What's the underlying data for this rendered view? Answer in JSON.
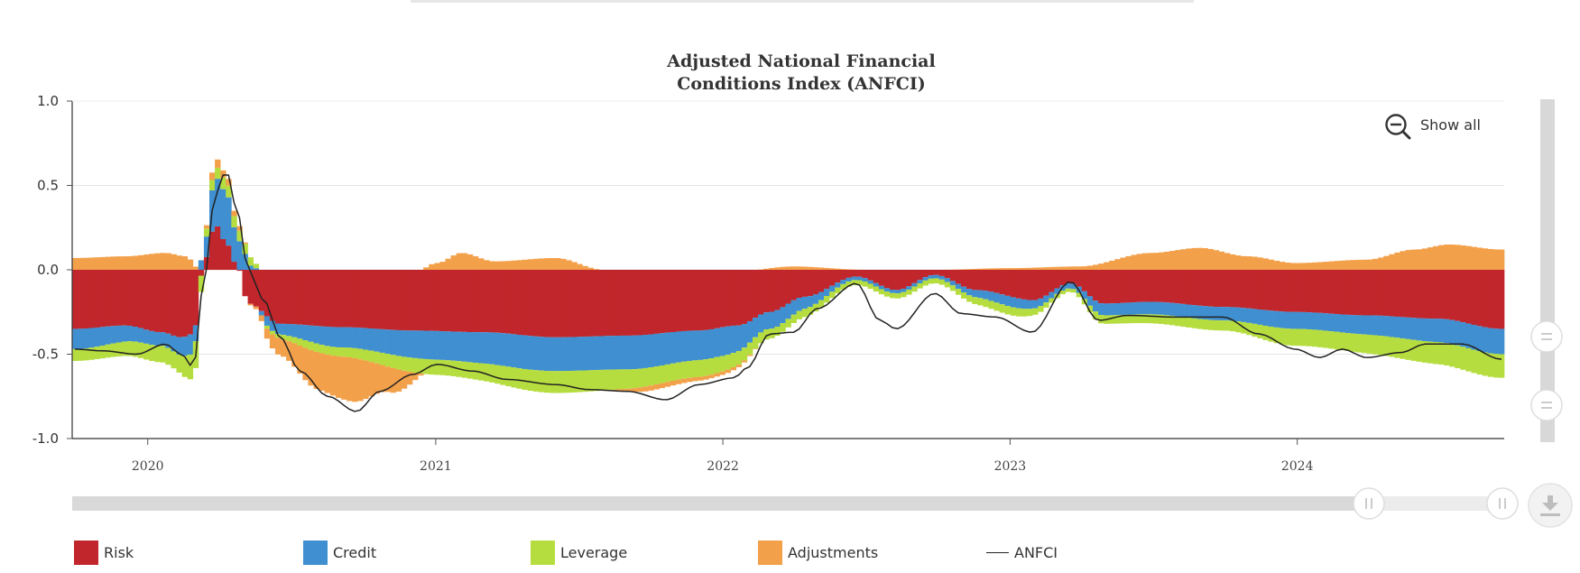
{
  "chart_data": {
    "type": "bar",
    "stacked": true,
    "title_lines": [
      "Adjusted National Financial",
      "Conditions Index (ANFCI)"
    ],
    "xlabel": "",
    "ylabel": "",
    "ylim": [
      -1.0,
      1.0
    ],
    "y_ticks": [
      "1.0",
      "0.5",
      "0.0",
      "-0.5",
      "-1.0"
    ],
    "x_ticks": [
      {
        "label": "2020",
        "year": 2020
      },
      {
        "label": "2021",
        "year": 2021
      },
      {
        "label": "2022",
        "year": 2022
      },
      {
        "label": "2023",
        "year": 2023
      },
      {
        "label": "2024",
        "year": 2024
      }
    ],
    "x_range": [
      "2019-09-27",
      "2024-09-20"
    ],
    "frequency": "weekly",
    "grid": true,
    "legend_position": "bottom",
    "series": [
      {
        "name": "Risk",
        "color": "#c0262b",
        "knots": [
          [
            "2019-09-27",
            -0.35
          ],
          [
            "2019-12-01",
            -0.33
          ],
          [
            "2020-01-15",
            -0.37
          ],
          [
            "2020-02-10",
            -0.4
          ],
          [
            "2020-02-25",
            -0.38
          ],
          [
            "2020-03-10",
            0.05
          ],
          [
            "2020-03-24",
            0.27
          ],
          [
            "2020-04-07",
            0.16
          ],
          [
            "2020-04-21",
            0.02
          ],
          [
            "2020-05-05",
            -0.2
          ],
          [
            "2020-06-15",
            -0.32
          ],
          [
            "2020-09-01",
            -0.34
          ],
          [
            "2020-12-01",
            -0.36
          ],
          [
            "2021-03-01",
            -0.37
          ],
          [
            "2021-06-01",
            -0.4
          ],
          [
            "2021-09-01",
            -0.39
          ],
          [
            "2021-12-01",
            -0.36
          ],
          [
            "2022-01-20",
            -0.33
          ],
          [
            "2022-03-01",
            -0.25
          ],
          [
            "2022-04-15",
            -0.16
          ],
          [
            "2022-06-20",
            -0.04
          ],
          [
            "2022-08-10",
            -0.12
          ],
          [
            "2022-09-28",
            -0.03
          ],
          [
            "2022-11-20",
            -0.12
          ],
          [
            "2023-02-01",
            -0.18
          ],
          [
            "2023-03-20",
            -0.08
          ],
          [
            "2023-05-01",
            -0.2
          ],
          [
            "2023-07-01",
            -0.19
          ],
          [
            "2023-10-01",
            -0.22
          ],
          [
            "2024-01-01",
            -0.25
          ],
          [
            "2024-04-01",
            -0.27
          ],
          [
            "2024-07-01",
            -0.29
          ],
          [
            "2024-09-20",
            -0.35
          ]
        ]
      },
      {
        "name": "Credit",
        "color": "#3f8fd1",
        "knots": [
          [
            "2019-09-27",
            -0.12
          ],
          [
            "2020-01-15",
            -0.08
          ],
          [
            "2020-02-25",
            -0.12
          ],
          [
            "2020-03-10",
            0.1
          ],
          [
            "2020-03-24",
            0.28
          ],
          [
            "2020-04-07",
            0.3
          ],
          [
            "2020-04-21",
            0.18
          ],
          [
            "2020-05-10",
            0.02
          ],
          [
            "2020-06-01",
            -0.06
          ],
          [
            "2020-09-01",
            -0.12
          ],
          [
            "2021-01-01",
            -0.17
          ],
          [
            "2021-05-01",
            -0.2
          ],
          [
            "2021-09-01",
            -0.2
          ],
          [
            "2022-01-01",
            -0.17
          ],
          [
            "2022-03-01",
            -0.1
          ],
          [
            "2022-06-20",
            -0.02
          ],
          [
            "2022-09-28",
            -0.02
          ],
          [
            "2023-01-01",
            -0.06
          ],
          [
            "2023-03-20",
            -0.03
          ],
          [
            "2023-05-01",
            -0.07
          ],
          [
            "2023-10-01",
            -0.08
          ],
          [
            "2024-01-01",
            -0.1
          ],
          [
            "2024-09-20",
            -0.15
          ]
        ]
      },
      {
        "name": "Leverage",
        "color": "#b6dd3f",
        "knots": [
          [
            "2019-09-27",
            -0.07
          ],
          [
            "2020-02-01",
            -0.1
          ],
          [
            "2020-03-01",
            -0.16
          ],
          [
            "2020-03-15",
            0.06
          ],
          [
            "2020-04-07",
            0.07
          ],
          [
            "2020-05-01",
            0.06
          ],
          [
            "2020-06-01",
            -0.02
          ],
          [
            "2020-08-01",
            -0.05
          ],
          [
            "2021-01-01",
            -0.09
          ],
          [
            "2021-06-01",
            -0.13
          ],
          [
            "2021-12-01",
            -0.1
          ],
          [
            "2022-04-01",
            -0.05
          ],
          [
            "2022-06-20",
            -0.03
          ],
          [
            "2022-09-28",
            -0.03
          ],
          [
            "2023-01-01",
            -0.05
          ],
          [
            "2023-03-20",
            -0.02
          ],
          [
            "2023-05-01",
            -0.05
          ],
          [
            "2023-10-01",
            -0.06
          ],
          [
            "2024-01-01",
            -0.1
          ],
          [
            "2024-09-20",
            -0.14
          ]
        ]
      },
      {
        "name": "Adjustments",
        "color": "#f3a04b",
        "knots": [
          [
            "2019-09-27",
            0.07
          ],
          [
            "2019-12-01",
            0.08
          ],
          [
            "2020-01-20",
            0.1
          ],
          [
            "2020-02-15",
            0.08
          ],
          [
            "2020-03-05",
            0.0
          ],
          [
            "2020-03-24",
            0.05
          ],
          [
            "2020-04-07",
            0.04
          ],
          [
            "2020-04-21",
            0.03
          ],
          [
            "2020-05-10",
            -0.01
          ],
          [
            "2020-06-15",
            -0.1
          ],
          [
            "2020-08-01",
            -0.22
          ],
          [
            "2020-09-15",
            -0.26
          ],
          [
            "2020-11-01",
            -0.15
          ],
          [
            "2021-01-01",
            0.04
          ],
          [
            "2021-02-01",
            0.1
          ],
          [
            "2021-03-15",
            0.05
          ],
          [
            "2021-06-01",
            0.07
          ],
          [
            "2021-08-01",
            0.0
          ],
          [
            "2021-10-01",
            -0.03
          ],
          [
            "2022-01-01",
            -0.02
          ],
          [
            "2022-04-01",
            0.02
          ],
          [
            "2022-07-01",
            0.0
          ],
          [
            "2022-10-01",
            0.0
          ],
          [
            "2023-01-01",
            0.01
          ],
          [
            "2023-04-01",
            0.02
          ],
          [
            "2023-07-01",
            0.1
          ],
          [
            "2023-09-01",
            0.13
          ],
          [
            "2023-11-01",
            0.08
          ],
          [
            "2024-01-01",
            0.04
          ],
          [
            "2024-04-01",
            0.06
          ],
          [
            "2024-06-01",
            0.12
          ],
          [
            "2024-07-15",
            0.15
          ],
          [
            "2024-09-20",
            0.12
          ]
        ]
      }
    ],
    "line": {
      "name": "ANFCI",
      "color": "#222222",
      "points": [
        [
          "2019-09-27",
          -0.47
        ],
        [
          "2019-11-01",
          -0.48
        ],
        [
          "2019-12-15",
          -0.5
        ],
        [
          "2020-01-20",
          -0.44
        ],
        [
          "2020-02-10",
          -0.5
        ],
        [
          "2020-02-25",
          -0.58
        ],
        [
          "2020-03-10",
          -0.05
        ],
        [
          "2020-03-24",
          0.45
        ],
        [
          "2020-04-07",
          0.59
        ],
        [
          "2020-04-21",
          0.35
        ],
        [
          "2020-05-05",
          0.0
        ],
        [
          "2020-05-25",
          -0.18
        ],
        [
          "2020-06-15",
          -0.4
        ],
        [
          "2020-07-10",
          -0.6
        ],
        [
          "2020-08-15",
          -0.75
        ],
        [
          "2020-09-20",
          -0.84
        ],
        [
          "2020-10-20",
          -0.72
        ],
        [
          "2020-12-01",
          -0.62
        ],
        [
          "2021-01-01",
          -0.56
        ],
        [
          "2021-02-15",
          -0.6
        ],
        [
          "2021-04-01",
          -0.65
        ],
        [
          "2021-06-01",
          -0.68
        ],
        [
          "2021-07-15",
          -0.71
        ],
        [
          "2021-09-01",
          -0.72
        ],
        [
          "2021-10-20",
          -0.77
        ],
        [
          "2021-12-01",
          -0.68
        ],
        [
          "2022-01-15",
          -0.64
        ],
        [
          "2022-02-01",
          -0.58
        ],
        [
          "2022-03-01",
          -0.38
        ],
        [
          "2022-04-01",
          -0.37
        ],
        [
          "2022-05-01",
          -0.23
        ],
        [
          "2022-06-20",
          -0.08
        ],
        [
          "2022-07-20",
          -0.3
        ],
        [
          "2022-08-10",
          -0.35
        ],
        [
          "2022-09-28",
          -0.14
        ],
        [
          "2022-11-01",
          -0.26
        ],
        [
          "2022-12-15",
          -0.28
        ],
        [
          "2023-01-30",
          -0.37
        ],
        [
          "2023-03-20",
          -0.07
        ],
        [
          "2023-04-25",
          -0.3
        ],
        [
          "2023-06-01",
          -0.27
        ],
        [
          "2023-08-01",
          -0.28
        ],
        [
          "2023-10-01",
          -0.28
        ],
        [
          "2023-11-15",
          -0.38
        ],
        [
          "2024-01-01",
          -0.47
        ],
        [
          "2024-02-01",
          -0.52
        ],
        [
          "2024-03-01",
          -0.47
        ],
        [
          "2024-04-01",
          -0.52
        ],
        [
          "2024-05-15",
          -0.49
        ],
        [
          "2024-06-15",
          -0.44
        ],
        [
          "2024-08-01",
          -0.44
        ],
        [
          "2024-09-20",
          -0.53
        ]
      ]
    }
  },
  "ui": {
    "show_all_label": "Show all",
    "legend": [
      {
        "label": "Risk",
        "color": "#c0262b",
        "kind": "box"
      },
      {
        "label": "Credit",
        "color": "#3f8fd1",
        "kind": "box"
      },
      {
        "label": "Leverage",
        "color": "#b6dd3f",
        "kind": "box"
      },
      {
        "label": "Adjustments",
        "color": "#f3a04b",
        "kind": "box"
      },
      {
        "label": "ANFCI",
        "color": "#222222",
        "kind": "line"
      }
    ],
    "icons": {
      "zoom": "zoom-out-icon",
      "download": "download-icon"
    }
  }
}
